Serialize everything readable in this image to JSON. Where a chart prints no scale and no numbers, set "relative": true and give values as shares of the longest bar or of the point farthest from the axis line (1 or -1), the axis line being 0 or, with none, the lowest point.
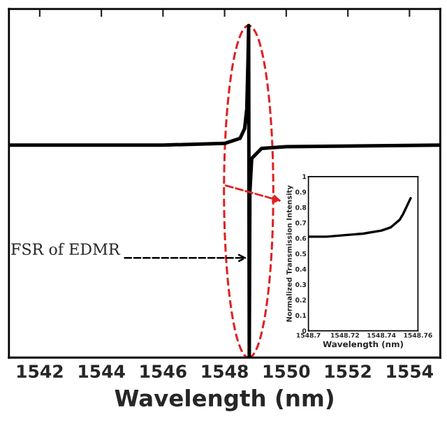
{
  "chart_data": [
    {
      "type": "line",
      "xlabel": "Wavelength (nm)",
      "relative": true,
      "color": "#000000",
      "x": [
        1541.0,
        1546.0,
        1548.0,
        1548.5,
        1548.65,
        1548.72,
        1548.76,
        1548.78,
        1548.8,
        1548.82,
        1548.88,
        1549.2,
        1550.0,
        1555.0
      ],
      "values": [
        0.64,
        0.64,
        0.645,
        0.66,
        0.69,
        0.75,
        0.9,
        1.0,
        0.0,
        0.5,
        0.6,
        0.63,
        0.635,
        0.64
      ],
      "xlim": [
        1541.0,
        1555.0
      ],
      "xticks": [
        1542,
        1544,
        1546,
        1548,
        1550,
        1552,
        1554
      ],
      "annotations": [
        {
          "text": "FSR of EDMR",
          "x": 1548.78,
          "y": 0.3
        }
      ],
      "grid": false,
      "legend": false
    },
    {
      "type": "line",
      "ylabel": "Normalized Transmission Intensity",
      "xlabel": "Wavelength (nm)",
      "color": "#000000",
      "x": [
        1548.7,
        1548.71,
        1548.72,
        1548.73,
        1548.74,
        1548.745,
        1548.75,
        1548.752,
        1548.754,
        1548.756
      ],
      "values": [
        0.61,
        0.61,
        0.62,
        0.63,
        0.65,
        0.67,
        0.72,
        0.76,
        0.81,
        0.86
      ],
      "xlim": [
        1548.7,
        1548.76
      ],
      "xticks": [
        1548.7,
        1548.72,
        1548.74,
        1548.76
      ],
      "ylim": [
        0,
        1
      ],
      "yticks": [
        0,
        0.1,
        0.2,
        0.3,
        0.4,
        0.5,
        0.6,
        0.7,
        0.8,
        0.9,
        1
      ],
      "grid": false,
      "legend": false
    }
  ]
}
